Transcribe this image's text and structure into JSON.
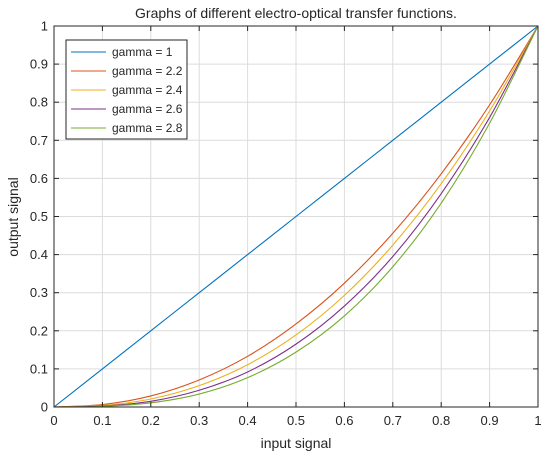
{
  "chart_data": {
    "type": "line",
    "title": "Graphs of different electro-optical transfer functions.",
    "xlabel": "input signal",
    "ylabel": "output signal",
    "xlim": [
      0,
      1
    ],
    "ylim": [
      0,
      1
    ],
    "xticks": [
      0,
      0.1,
      0.2,
      0.3,
      0.4,
      0.5,
      0.6,
      0.7,
      0.8,
      0.9,
      1
    ],
    "yticks": [
      0,
      0.1,
      0.2,
      0.3,
      0.4,
      0.5,
      0.6,
      0.7,
      0.8,
      0.9,
      1
    ],
    "xtick_labels": [
      "0",
      "0.1",
      "0.2",
      "0.3",
      "0.4",
      "0.5",
      "0.6",
      "0.7",
      "0.8",
      "0.9",
      "1"
    ],
    "ytick_labels": [
      "0",
      "0.1",
      "0.2",
      "0.3",
      "0.4",
      "0.5",
      "0.6",
      "0.7",
      "0.8",
      "0.9",
      "1"
    ],
    "grid": true,
    "legend_position": "top-left",
    "x": [
      0,
      0.1,
      0.2,
      0.3,
      0.4,
      0.5,
      0.6,
      0.7,
      0.8,
      0.9,
      1
    ],
    "series": [
      {
        "name": "gamma = 1",
        "color": "#0072BD",
        "values": [
          0,
          0.1,
          0.2,
          0.3,
          0.4,
          0.5,
          0.6,
          0.7,
          0.8,
          0.9,
          1
        ]
      },
      {
        "name": "gamma = 2.2",
        "color": "#D95319",
        "values": [
          0,
          0.0063,
          0.029,
          0.071,
          0.133,
          0.218,
          0.325,
          0.456,
          0.612,
          0.793,
          1
        ]
      },
      {
        "name": "gamma = 2.4",
        "color": "#EDB120",
        "values": [
          0,
          0.004,
          0.021,
          0.056,
          0.111,
          0.189,
          0.293,
          0.425,
          0.586,
          0.777,
          1
        ]
      },
      {
        "name": "gamma = 2.6",
        "color": "#7E2F8E",
        "values": [
          0,
          0.0025,
          0.015,
          0.044,
          0.092,
          0.165,
          0.265,
          0.395,
          0.56,
          0.76,
          1
        ]
      },
      {
        "name": "gamma = 2.8",
        "color": "#77AC30",
        "values": [
          0,
          0.0016,
          0.011,
          0.034,
          0.077,
          0.144,
          0.239,
          0.368,
          0.535,
          0.745,
          1
        ]
      }
    ]
  }
}
